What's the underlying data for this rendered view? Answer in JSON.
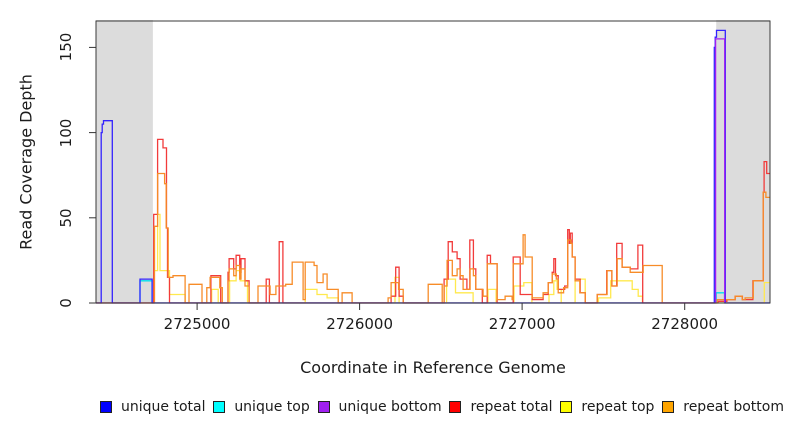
{
  "chart_data": {
    "type": "line",
    "line_style": "step-after",
    "title": "",
    "xlabel": "Coordinate in Reference Genome",
    "ylabel": "Read Coverage Depth",
    "x_range": [
      2724378,
      2728525
    ],
    "y_range": [
      0,
      165.5
    ],
    "x_ticks": [
      2725000,
      2726000,
      2727000,
      2728000
    ],
    "x_tick_labels": [
      "2725000",
      "2726000",
      "2727000",
      "2728000"
    ],
    "y_ticks": [
      0,
      50,
      100,
      150
    ],
    "y_tick_labels": [
      "0",
      "50",
      "100",
      "150"
    ],
    "grid": false,
    "legend_position": "bottom",
    "shade_color": "#dcdcdc",
    "shaded_regions": [
      [
        2724378,
        2724728
      ],
      [
        2728194,
        2728525
      ]
    ],
    "draw_order": [
      "unique top",
      "repeat top",
      "repeat total",
      "repeat bottom",
      "unique total",
      "unique bottom"
    ],
    "series": [
      {
        "label": "unique total",
        "color": "#0000ff",
        "line_color": "#3323fe",
        "points": [
          [
            2724410,
            100
          ],
          [
            2724416,
            105
          ],
          [
            2724424,
            107
          ],
          [
            2724478,
            0
          ],
          [
            2724649,
            14
          ],
          [
            2724723,
            0
          ],
          [
            2728182,
            150
          ],
          [
            2728188,
            156
          ],
          [
            2728196,
            160
          ],
          [
            2728250,
            0
          ]
        ]
      },
      {
        "label": "unique top",
        "color": "#00ffff",
        "line_color": "#00e0ee",
        "points": [
          [
            2724649,
            13
          ],
          [
            2724723,
            0
          ],
          [
            2728194,
            6
          ],
          [
            2728245,
            0
          ]
        ]
      },
      {
        "label": "unique bottom",
        "color": "#a020f0",
        "line_color": "#a020f0",
        "points": [
          [
            2728190,
            155
          ],
          [
            2728246,
            0
          ]
        ]
      },
      {
        "label": "repeat total",
        "color": "#ff0000",
        "line_color": "#f23b3b",
        "points": [
          [
            2724733,
            52
          ],
          [
            2724757,
            96
          ],
          [
            2724790,
            91
          ],
          [
            2724812,
            44
          ],
          [
            2724818,
            15
          ],
          [
            2724830,
            0
          ],
          [
            2725085,
            16
          ],
          [
            2725145,
            0
          ],
          [
            2725190,
            18
          ],
          [
            2725197,
            26
          ],
          [
            2725225,
            20
          ],
          [
            2725240,
            28
          ],
          [
            2725262,
            18
          ],
          [
            2725270,
            26
          ],
          [
            2725295,
            13
          ],
          [
            2725320,
            0
          ],
          [
            2725425,
            14
          ],
          [
            2725445,
            0
          ],
          [
            2725505,
            36
          ],
          [
            2725528,
            0
          ],
          [
            2726194,
            4
          ],
          [
            2726222,
            21
          ],
          [
            2726243,
            4
          ],
          [
            2726268,
            0
          ],
          [
            2726520,
            14
          ],
          [
            2726545,
            36
          ],
          [
            2726570,
            30
          ],
          [
            2726600,
            26
          ],
          [
            2726618,
            14
          ],
          [
            2726660,
            8
          ],
          [
            2726678,
            37
          ],
          [
            2726700,
            20
          ],
          [
            2726715,
            8
          ],
          [
            2726755,
            0
          ],
          [
            2726785,
            28
          ],
          [
            2726805,
            23
          ],
          [
            2726846,
            0
          ],
          [
            2726945,
            27
          ],
          [
            2726988,
            5
          ],
          [
            2727062,
            2
          ],
          [
            2727129,
            5
          ],
          [
            2727160,
            12
          ],
          [
            2727185,
            18
          ],
          [
            2727195,
            26
          ],
          [
            2727205,
            16
          ],
          [
            2727222,
            8
          ],
          [
            2727262,
            10
          ],
          [
            2727280,
            43
          ],
          [
            2727290,
            35
          ],
          [
            2727296,
            41
          ],
          [
            2727308,
            27
          ],
          [
            2727326,
            14
          ],
          [
            2727357,
            6
          ],
          [
            2727388,
            0
          ],
          [
            2727462,
            5
          ],
          [
            2727520,
            19
          ],
          [
            2727552,
            10
          ],
          [
            2727582,
            35
          ],
          [
            2727615,
            21
          ],
          [
            2727665,
            20
          ],
          [
            2727712,
            34
          ],
          [
            2727742,
            0
          ],
          [
            2728205,
            1
          ],
          [
            2728260,
            2
          ],
          [
            2728310,
            4
          ],
          [
            2728355,
            2
          ],
          [
            2728420,
            13
          ],
          [
            2728483,
            65
          ],
          [
            2728489,
            83
          ],
          [
            2728505,
            76
          ]
        ]
      },
      {
        "label": "repeat top",
        "color": "#ffff00",
        "line_color": "#ffe94e",
        "points": [
          [
            2724737,
            19
          ],
          [
            2724757,
            52
          ],
          [
            2724772,
            19
          ],
          [
            2724830,
            5
          ],
          [
            2724926,
            0
          ],
          [
            2725090,
            8
          ],
          [
            2725130,
            0
          ],
          [
            2725200,
            13
          ],
          [
            2725240,
            19
          ],
          [
            2725265,
            13
          ],
          [
            2725310,
            0
          ],
          [
            2725665,
            8
          ],
          [
            2725738,
            5
          ],
          [
            2725800,
            3
          ],
          [
            2725868,
            0
          ],
          [
            2726218,
            15
          ],
          [
            2726243,
            0
          ],
          [
            2726535,
            14
          ],
          [
            2726590,
            6
          ],
          [
            2726631,
            6
          ],
          [
            2726698,
            0
          ],
          [
            2726790,
            8
          ],
          [
            2726840,
            0
          ],
          [
            2726950,
            10
          ],
          [
            2727010,
            12
          ],
          [
            2727060,
            0
          ],
          [
            2727165,
            5
          ],
          [
            2727195,
            13
          ],
          [
            2727215,
            8
          ],
          [
            2727240,
            0
          ],
          [
            2727326,
            14
          ],
          [
            2727388,
            0
          ],
          [
            2727470,
            3
          ],
          [
            2727545,
            13
          ],
          [
            2727677,
            8
          ],
          [
            2727714,
            4
          ],
          [
            2727740,
            0
          ],
          [
            2728490,
            12
          ]
        ]
      },
      {
        "label": "repeat bottom",
        "color": "#ffa500",
        "line_color": "#f78c28",
        "points": [
          [
            2724738,
            45
          ],
          [
            2724757,
            76
          ],
          [
            2724800,
            70
          ],
          [
            2724810,
            44
          ],
          [
            2724822,
            15
          ],
          [
            2724852,
            16
          ],
          [
            2724926,
            0
          ],
          [
            2724950,
            11
          ],
          [
            2725030,
            0
          ],
          [
            2725060,
            9
          ],
          [
            2725080,
            15
          ],
          [
            2725140,
            9
          ],
          [
            2725155,
            0
          ],
          [
            2725190,
            13
          ],
          [
            2725197,
            20
          ],
          [
            2725225,
            16
          ],
          [
            2725240,
            22
          ],
          [
            2725262,
            14
          ],
          [
            2725270,
            20
          ],
          [
            2725295,
            10
          ],
          [
            2725320,
            0
          ],
          [
            2725375,
            10
          ],
          [
            2725449,
            5
          ],
          [
            2725485,
            10
          ],
          [
            2725545,
            11
          ],
          [
            2725585,
            24
          ],
          [
            2725652,
            2
          ],
          [
            2725665,
            24
          ],
          [
            2725720,
            22
          ],
          [
            2725738,
            12
          ],
          [
            2725775,
            17
          ],
          [
            2725800,
            8
          ],
          [
            2725868,
            0
          ],
          [
            2725892,
            6
          ],
          [
            2725954,
            0
          ],
          [
            2726175,
            3
          ],
          [
            2726194,
            12
          ],
          [
            2726240,
            8
          ],
          [
            2726268,
            0
          ],
          [
            2726422,
            11
          ],
          [
            2726508,
            0
          ],
          [
            2726520,
            10
          ],
          [
            2726538,
            25
          ],
          [
            2726570,
            16
          ],
          [
            2726600,
            20
          ],
          [
            2726618,
            16
          ],
          [
            2726637,
            8
          ],
          [
            2726680,
            20
          ],
          [
            2726700,
            16
          ],
          [
            2726715,
            8
          ],
          [
            2726760,
            4
          ],
          [
            2726785,
            23
          ],
          [
            2726846,
            2
          ],
          [
            2726895,
            4
          ],
          [
            2726938,
            2
          ],
          [
            2726945,
            23
          ],
          [
            2727006,
            40
          ],
          [
            2727018,
            27
          ],
          [
            2727062,
            3
          ],
          [
            2727129,
            6
          ],
          [
            2727160,
            12
          ],
          [
            2727185,
            17
          ],
          [
            2727210,
            14
          ],
          [
            2727222,
            6
          ],
          [
            2727255,
            9
          ],
          [
            2727280,
            37
          ],
          [
            2727300,
            35
          ],
          [
            2727308,
            27
          ],
          [
            2727326,
            13
          ],
          [
            2727355,
            6
          ],
          [
            2727388,
            0
          ],
          [
            2727462,
            5
          ],
          [
            2727523,
            19
          ],
          [
            2727552,
            10
          ],
          [
            2727585,
            26
          ],
          [
            2727615,
            21
          ],
          [
            2727665,
            18
          ],
          [
            2727745,
            22
          ],
          [
            2727862,
            0
          ],
          [
            2728200,
            2
          ],
          [
            2728311,
            4
          ],
          [
            2728354,
            2
          ],
          [
            2728372,
            3
          ],
          [
            2728422,
            13
          ],
          [
            2728483,
            65
          ],
          [
            2728500,
            62
          ]
        ]
      }
    ]
  }
}
